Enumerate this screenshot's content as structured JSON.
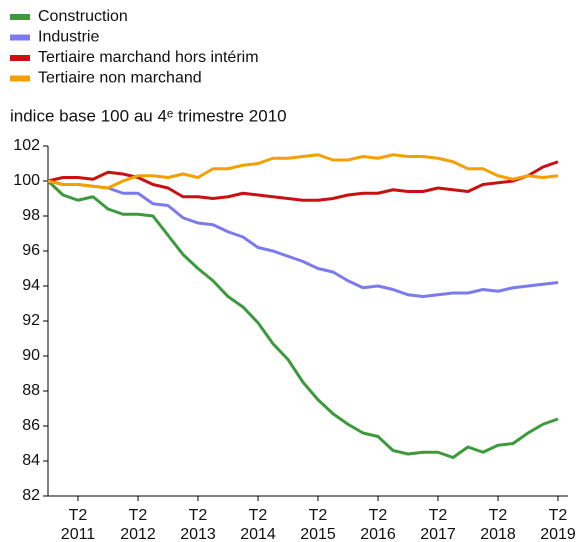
{
  "chart_data": {
    "type": "line",
    "subtitle": "indice base 100 au 4ᵉ trimestre 2010",
    "categories": [
      null,
      null,
      "T2 2011",
      null,
      null,
      null,
      "T2 2012",
      null,
      null,
      null,
      "T2 2013",
      null,
      null,
      null,
      "T2 2014",
      null,
      null,
      null,
      "T2 2015",
      null,
      null,
      null,
      "T2 2016",
      null,
      null,
      null,
      "T2 2017",
      null,
      null,
      null,
      "T2 2018",
      null,
      null,
      null,
      "T2 2019"
    ],
    "series": [
      {
        "name": "Construction",
        "color": "#3c9a3c",
        "values": [
          100,
          99.2,
          98.9,
          99.1,
          98.4,
          98.1,
          98.1,
          98.0,
          96.9,
          95.8,
          95.0,
          94.3,
          93.4,
          92.8,
          91.9,
          90.7,
          89.8,
          88.5,
          87.5,
          86.7,
          86.1,
          85.6,
          85.4,
          84.6,
          84.4,
          84.5,
          84.5,
          84.2,
          84.8,
          84.5,
          84.9,
          85.0,
          85.6,
          86.1,
          86.4
        ]
      },
      {
        "name": "Industrie",
        "color": "#7b7bef",
        "values": [
          100,
          99.8,
          99.8,
          99.7,
          99.6,
          99.3,
          99.3,
          98.7,
          98.6,
          97.9,
          97.6,
          97.5,
          97.1,
          96.8,
          96.2,
          96.0,
          95.7,
          95.4,
          95.0,
          94.8,
          94.3,
          93.9,
          94.0,
          93.8,
          93.5,
          93.4,
          93.5,
          93.6,
          93.6,
          93.8,
          93.7,
          93.9,
          94.0,
          94.1,
          94.2
        ]
      },
      {
        "name": "Tertiaire marchand hors intérim",
        "color": "#cc1010",
        "values": [
          100,
          100.2,
          100.2,
          100.1,
          100.5,
          100.4,
          100.2,
          99.8,
          99.6,
          99.1,
          99.1,
          99.0,
          99.1,
          99.3,
          99.2,
          99.1,
          99.0,
          98.9,
          98.9,
          99.0,
          99.2,
          99.3,
          99.3,
          99.5,
          99.4,
          99.4,
          99.6,
          99.5,
          99.4,
          99.8,
          99.9,
          100.0,
          100.3,
          100.8,
          101.1
        ]
      },
      {
        "name": "Tertiaire non marchand",
        "color": "#f5a000",
        "values": [
          100,
          99.8,
          99.8,
          99.7,
          99.6,
          100.0,
          100.3,
          100.3,
          100.2,
          100.4,
          100.2,
          100.7,
          100.7,
          100.9,
          101.0,
          101.3,
          101.3,
          101.4,
          101.5,
          101.2,
          101.2,
          101.4,
          101.3,
          101.5,
          101.4,
          101.4,
          101.3,
          101.1,
          100.7,
          100.7,
          100.3,
          100.1,
          100.3,
          100.2,
          100.3
        ]
      }
    ],
    "ylim": [
      82,
      102
    ],
    "yticks": [
      82,
      84,
      86,
      88,
      90,
      92,
      94,
      96,
      98,
      100,
      102
    ],
    "grid": false,
    "legend": "top-left"
  }
}
